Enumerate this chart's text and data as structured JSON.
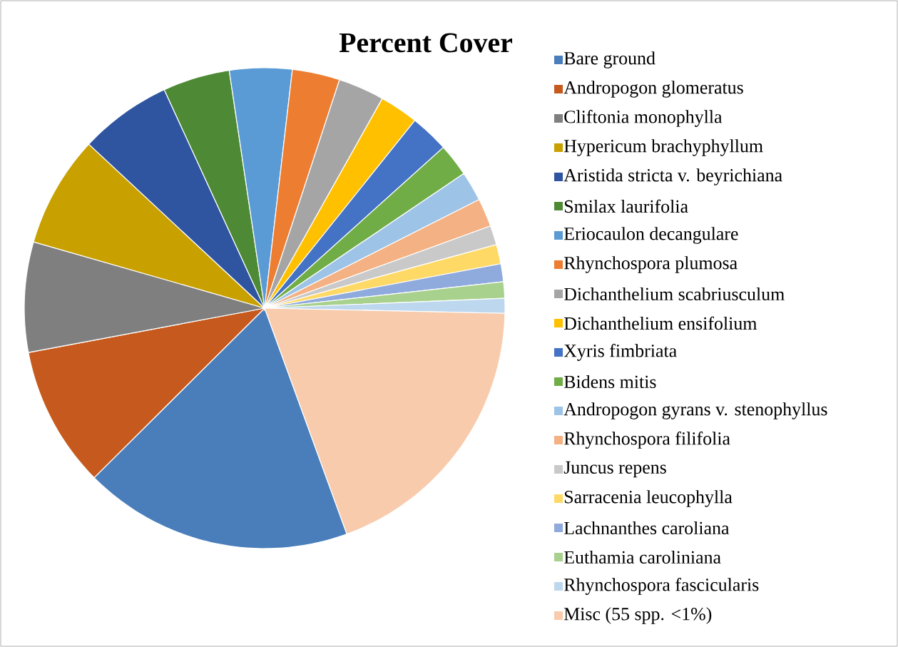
{
  "chart_data": {
    "type": "pie",
    "title": "Percent Cover",
    "legend": "right",
    "categories": [
      "Bare ground",
      "Andropogon glomeratus",
      "Cliftonia monophylla",
      "Hypericum brachyphyllum",
      "Aristida stricta v. beyrichiana",
      "Smilax laurifolia",
      "Eriocaulon decangulare",
      "Rhynchospora plumosa",
      "Dichanthelium  scabriusculum",
      "Dichanthelium ensifolium",
      "Xyris fimbriata",
      "Bidens mitis",
      "Andropogon gyrans v. stenophyllus",
      "Rhynchospora filifolia",
      "Juncus repens",
      "Sarracenia leucophylla",
      "Lachnanthes caroliana",
      "Euthamia caroliniana",
      "Rhynchospora fascicularis",
      "Misc (55 spp. <1%)"
    ],
    "values": [
      18.1,
      9.5,
      7.4,
      7.5,
      6.2,
      4.5,
      4.2,
      3.2,
      3.1,
      2.6,
      2.6,
      2.2,
      2.0,
      1.9,
      1.3,
      1.3,
      1.2,
      1.1,
      1.0,
      19.1
    ],
    "colors": [
      "#4a7ebb",
      "#c65a1e",
      "#7f7f7f",
      "#c8a000",
      "#2f55a0",
      "#4e8a35",
      "#5b9bd5",
      "#ed7d31",
      "#a5a5a5",
      "#ffc000",
      "#4472c4",
      "#70ad47",
      "#9dc3e6",
      "#f4b183",
      "#c9c9c9",
      "#ffd966",
      "#8faadc",
      "#a9d18e",
      "#bdd7ee",
      "#f8cbad"
    ]
  }
}
